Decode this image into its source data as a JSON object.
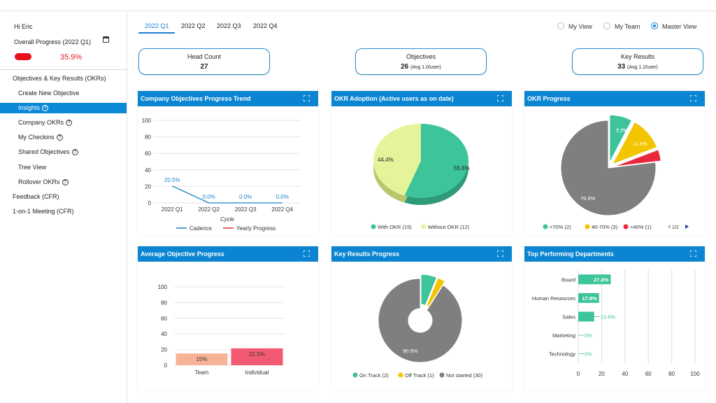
{
  "colors": {
    "accent": "#0b85d1",
    "green": "#3ec49a",
    "yellow": "#f3c400",
    "red": "#e8283a",
    "grey": "#7f7f7f",
    "lightyellow": "#e5f39b",
    "salmon": "#f7b397",
    "pink": "#f25a74"
  },
  "sidebar": {
    "greeting": "Hi Eric",
    "progress_title": "Overall Progress (2022 Q1)",
    "progress_value": "35.9%",
    "progress_fraction": 0.359,
    "items": [
      {
        "label": "Objectives & Key Results (OKRs)"
      },
      {
        "label": "Create New Objective"
      },
      {
        "label": "Insights"
      },
      {
        "label": "Company OKRs"
      },
      {
        "label": "My Checkins"
      },
      {
        "label": "Shared Objectives"
      },
      {
        "label": "Tree View"
      },
      {
        "label": "Rollover OKRs"
      },
      {
        "label": "Feedback (CFR)"
      },
      {
        "label": "1-on-1 Meeting (CFR)"
      }
    ]
  },
  "tabs": [
    "2022 Q1",
    "2022 Q2",
    "2022 Q3",
    "2022 Q4"
  ],
  "views": [
    "My View",
    "My Team",
    "Master View"
  ],
  "stats": [
    {
      "label": "Head Count",
      "value": "27",
      "sub": ""
    },
    {
      "label": "Objectives",
      "value": "26",
      "sub": "(Avg 1.0/user)"
    },
    {
      "label": "Key Results",
      "value": "33",
      "sub": "(Avg 1.2/user)"
    }
  ],
  "panels": {
    "trend_title": "Company Objectives Progress Trend",
    "adoption_title": "OKR Adoption (Active users as on date)",
    "okr_title": "OKR Progress",
    "avg_title": "Average Objective Progress",
    "kr_title": "Key Results Progress",
    "dept_title": "Top Performing Departments"
  },
  "chart_data": [
    {
      "type": "line",
      "title": "Company Objectives Progress Trend",
      "categories": [
        "2022 Q1",
        "2022 Q2",
        "2022 Q3",
        "2022 Q4"
      ],
      "xlabel": "Cycle",
      "ylim": [
        0,
        100
      ],
      "yticks": [
        "0",
        "20",
        "40",
        "60",
        "80",
        "100"
      ],
      "series": [
        {
          "name": "Cadence",
          "values": [
            20.5,
            0,
            0,
            0
          ],
          "labels": [
            "20.5%",
            "0.0%",
            "0.0%",
            "0.0%"
          ]
        },
        {
          "name": "Yearly Progress",
          "values": [
            null,
            null,
            null,
            null
          ]
        }
      ]
    },
    {
      "type": "pie",
      "title": "OKR Adoption (Active users as on date)",
      "slices": [
        {
          "name": "With OKR",
          "count": "(15)",
          "value": 55.6,
          "label": "55.6%"
        },
        {
          "name": "Without OKR",
          "count": "(12)",
          "value": 44.4,
          "label": "44.4%"
        }
      ]
    },
    {
      "type": "pie",
      "title": "OKR Progress",
      "slices": [
        {
          "name": ">70%",
          "count": "(2)",
          "value": 7.7,
          "label": "7.7%"
        },
        {
          "name": "40-70%",
          "count": "(3)",
          "value": 11.5,
          "label": "11.5%"
        },
        {
          "name": "<40%",
          "count": "(1)",
          "value": 3.9,
          "label": ""
        },
        {
          "name": "",
          "count": "",
          "value": 76.9,
          "label": "76.9%"
        }
      ],
      "legend_page": "1/2"
    },
    {
      "type": "bar",
      "title": "Average Objective Progress",
      "categories": [
        "Team",
        "Individual"
      ],
      "values": [
        15,
        21.5
      ],
      "labels": [
        "15%",
        "21.5%"
      ],
      "ylim": [
        0,
        100
      ],
      "yticks": [
        "0",
        "20",
        "40",
        "60",
        "80",
        "100"
      ]
    },
    {
      "type": "pie",
      "title": "Key Results Progress",
      "slices": [
        {
          "name": "On Track",
          "count": "(2)",
          "value": 6.1,
          "label": ""
        },
        {
          "name": "Off Track",
          "count": "(1)",
          "value": 3.0,
          "label": ""
        },
        {
          "name": "Not started",
          "count": "(30)",
          "value": 90.9,
          "label": "90.9%"
        }
      ]
    },
    {
      "type": "bar",
      "title": "Top Performing Departments",
      "orientation": "horizontal",
      "categories": [
        "Board",
        "Human Resources",
        "Sales",
        "Marketing",
        "Technology"
      ],
      "values": [
        27.8,
        17.8,
        13.6,
        0,
        0
      ],
      "labels": [
        "27.8%",
        "17.8%",
        "13.6%",
        "0%",
        "0%"
      ],
      "xlim": [
        0,
        100
      ],
      "xticks": [
        "0",
        "20",
        "40",
        "60",
        "80",
        "100"
      ]
    }
  ]
}
